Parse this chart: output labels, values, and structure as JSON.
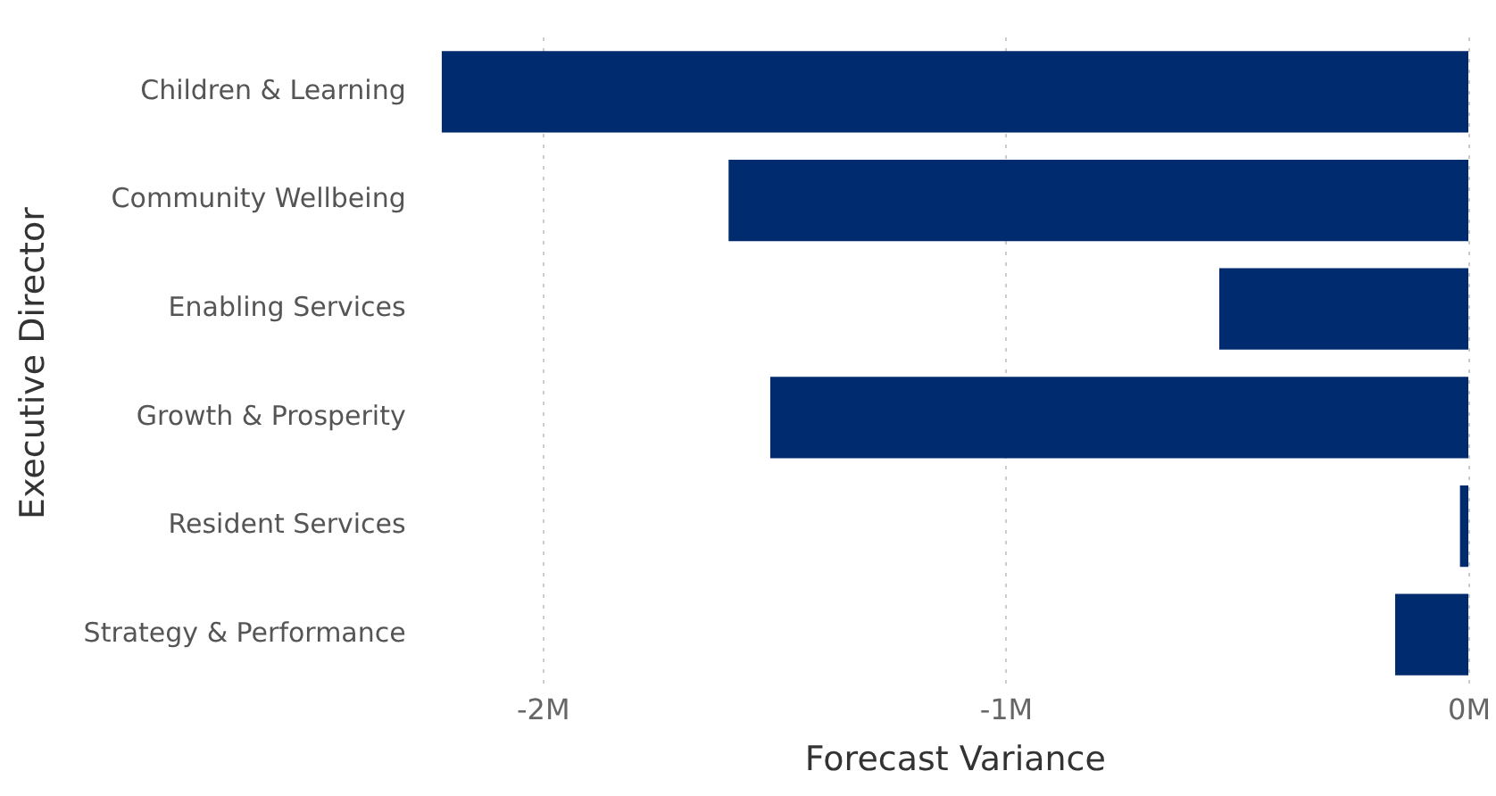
{
  "chart_data": {
    "type": "bar",
    "orientation": "horizontal",
    "xlabel": "Forecast Variance",
    "ylabel": "Executive Director",
    "categories": [
      "Children & Learning",
      "Community Wellbeing",
      "Enabling Services",
      "Growth & Prosperity",
      "Resident Services",
      "Strategy & Performance"
    ],
    "values": [
      -2.22,
      -1.6,
      -0.54,
      -1.51,
      -0.02,
      -0.16
    ],
    "color": "#002b6e",
    "xlim": [
      -2.22,
      0
    ],
    "xticks": [
      {
        "value": -2,
        "label": "-2M"
      },
      {
        "value": -1,
        "label": "-1M"
      },
      {
        "value": 0,
        "label": "0M"
      }
    ],
    "grid": "x",
    "legend": false
  }
}
